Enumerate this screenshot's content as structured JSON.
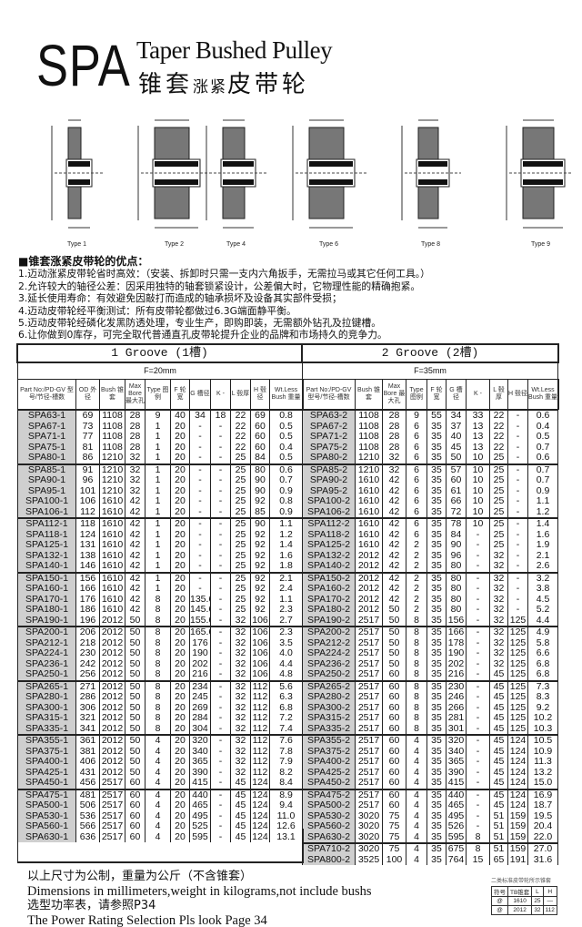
{
  "header": {
    "series": "SPA",
    "title_en": "Taper Bushed Pulley",
    "title_cn_a": "锥套",
    "title_cn_b": "涨紧",
    "title_cn_c": "皮带轮"
  },
  "diagrams": [
    "Type 1",
    "Type 2",
    "Type 4",
    "Type 6",
    "Type 8",
    "Type 9"
  ],
  "advantages": {
    "heading": "■锥套涨紧皮带轮的优点：",
    "items": [
      "1.迈动涨紧皮带轮省时高效：（安装、拆卸时只需一支内六角扳手，无需拉马或其它任何工具。）",
      "2.允许较大的轴径公差：因采用独特的轴套锁紧设计，公差偏大时，它物理性能的精确抱紧。",
      "3.延长使用寿命：有效避免因敲打而造成的轴承损坏及设备其实部件受损；",
      "4.迈动皮带轮经平衡测试：所有皮带轮都做过6.3G端面静平衡。",
      "5.迈动皮带轮经磷化发黑防透处理，专业生产，即购即装，无需额外钻孔及拉键槽。",
      "6.让你做到0库存，可完全取代普通直孔皮带轮提升企业的品牌和市场持久的竞争力。"
    ]
  },
  "groove1": {
    "title": "1 Groove (1槽)",
    "face": "F=20mm",
    "columns": [
      "Part No:/PD-GV 型号/节径-槽数",
      "OD 外径",
      "Bush 锥套",
      "Max Bore 最大孔",
      "Type 图例",
      "F 轮宽",
      "G 槽径",
      "K -",
      "L 毂厚",
      "H 毂径",
      "Wt.Less Bush 重量"
    ],
    "rows": [
      [
        "SPA63-1",
        "69",
        "1108",
        "28",
        "9",
        "40",
        "34",
        "18",
        "22",
        "69",
        "0.8"
      ],
      [
        "SPA67-1",
        "73",
        "1108",
        "28",
        "1",
        "20",
        "-",
        "-",
        "22",
        "60",
        "0.5"
      ],
      [
        "SPA71-1",
        "77",
        "1108",
        "28",
        "1",
        "20",
        "-",
        "-",
        "22",
        "60",
        "0.5"
      ],
      [
        "SPA75-1",
        "81",
        "1108",
        "28",
        "1",
        "20",
        "-",
        "-",
        "22",
        "60",
        "0.4"
      ],
      [
        "SPA80-1",
        "86",
        "1210",
        "32",
        "1",
        "20",
        "-",
        "-",
        "25",
        "84",
        "0.5"
      ],
      [
        "SPA85-1",
        "91",
        "1210",
        "32",
        "1",
        "20",
        "-",
        "-",
        "25",
        "80",
        "0.6"
      ],
      [
        "SPA90-1",
        "96",
        "1210",
        "32",
        "1",
        "20",
        "-",
        "-",
        "25",
        "90",
        "0.7"
      ],
      [
        "SPA95-1",
        "101",
        "1210",
        "32",
        "1",
        "20",
        "-",
        "-",
        "25",
        "90",
        "0.9"
      ],
      [
        "SPA100-1",
        "106",
        "1610",
        "42",
        "1",
        "20",
        "-",
        "-",
        "25",
        "92",
        "0.8"
      ],
      [
        "SPA106-1",
        "112",
        "1610",
        "42",
        "1",
        "20",
        "-",
        "-",
        "25",
        "85",
        "0.9"
      ],
      [
        "SPA112-1",
        "118",
        "1610",
        "42",
        "1",
        "20",
        "-",
        "-",
        "25",
        "90",
        "1.1"
      ],
      [
        "SPA118-1",
        "124",
        "1610",
        "42",
        "1",
        "20",
        "-",
        "-",
        "25",
        "92",
        "1.2"
      ],
      [
        "SPA125-1",
        "131",
        "1610",
        "42",
        "1",
        "20",
        "-",
        "-",
        "25",
        "92",
        "1.4"
      ],
      [
        "SPA132-1",
        "138",
        "1610",
        "42",
        "1",
        "20",
        "-",
        "-",
        "25",
        "92",
        "1.6"
      ],
      [
        "SPA140-1",
        "146",
        "1610",
        "42",
        "1",
        "20",
        "-",
        "-",
        "25",
        "92",
        "1.8"
      ],
      [
        "SPA150-1",
        "156",
        "1610",
        "42",
        "1",
        "20",
        "-",
        "-",
        "25",
        "92",
        "2.1"
      ],
      [
        "SPA160-1",
        "166",
        "1610",
        "42",
        "1",
        "20",
        "-",
        "-",
        "25",
        "92",
        "2.4"
      ],
      [
        "SPA170-1",
        "176",
        "1610",
        "42",
        "8",
        "20",
        "135.6",
        "-",
        "25",
        "92",
        "1.1"
      ],
      [
        "SPA180-1",
        "186",
        "1610",
        "42",
        "8",
        "20",
        "145.6",
        "-",
        "25",
        "92",
        "2.3"
      ],
      [
        "SPA190-1",
        "196",
        "2012",
        "50",
        "8",
        "20",
        "155.6",
        "-",
        "32",
        "106",
        "2.7"
      ],
      [
        "SPA200-1",
        "206",
        "2012",
        "50",
        "8",
        "20",
        "165.6",
        "-",
        "32",
        "106",
        "2.3"
      ],
      [
        "SPA212-1",
        "218",
        "2012",
        "50",
        "8",
        "20",
        "176",
        "-",
        "32",
        "106",
        "3.5"
      ],
      [
        "SPA224-1",
        "230",
        "2012",
        "50",
        "8",
        "20",
        "190",
        "-",
        "32",
        "106",
        "4.0"
      ],
      [
        "SPA236-1",
        "242",
        "2012",
        "50",
        "8",
        "20",
        "202",
        "-",
        "32",
        "106",
        "4.4"
      ],
      [
        "SPA250-1",
        "256",
        "2012",
        "50",
        "8",
        "20",
        "216",
        "-",
        "32",
        "106",
        "4.8"
      ],
      [
        "SPA265-1",
        "271",
        "2012",
        "50",
        "8",
        "20",
        "234",
        "-",
        "32",
        "112",
        "5.6"
      ],
      [
        "SPA280-1",
        "286",
        "2012",
        "50",
        "8",
        "20",
        "245",
        "-",
        "32",
        "112",
        "6.3"
      ],
      [
        "SPA300-1",
        "306",
        "2012",
        "50",
        "8",
        "20",
        "269",
        "-",
        "32",
        "112",
        "6.8"
      ],
      [
        "SPA315-1",
        "321",
        "2012",
        "50",
        "8",
        "20",
        "284",
        "-",
        "32",
        "112",
        "7.2"
      ],
      [
        "SPA335-1",
        "341",
        "2012",
        "50",
        "8",
        "20",
        "304",
        "-",
        "32",
        "112",
        "7.4"
      ],
      [
        "SPA355-1",
        "361",
        "2012",
        "50",
        "4",
        "20",
        "320",
        "-",
        "32",
        "112",
        "7.6"
      ],
      [
        "SPA375-1",
        "381",
        "2012",
        "50",
        "4",
        "20",
        "340",
        "-",
        "32",
        "112",
        "7.8"
      ],
      [
        "SPA400-1",
        "406",
        "2012",
        "50",
        "4",
        "20",
        "365",
        "-",
        "32",
        "112",
        "7.9"
      ],
      [
        "SPA425-1",
        "431",
        "2012",
        "50",
        "4",
        "20",
        "390",
        "-",
        "32",
        "112",
        "8.2"
      ],
      [
        "SPA450-1",
        "456",
        "2517",
        "60",
        "4",
        "20",
        "415",
        "-",
        "45",
        "124",
        "8.4"
      ],
      [
        "SPA475-1",
        "481",
        "2517",
        "60",
        "4",
        "20",
        "440",
        "-",
        "45",
        "124",
        "8.9"
      ],
      [
        "SPA500-1",
        "506",
        "2517",
        "60",
        "4",
        "20",
        "465",
        "-",
        "45",
        "124",
        "9.4"
      ],
      [
        "SPA530-1",
        "536",
        "2517",
        "60",
        "4",
        "20",
        "495",
        "-",
        "45",
        "124",
        "11.0"
      ],
      [
        "SPA560-1",
        "566",
        "2517",
        "60",
        "4",
        "20",
        "525",
        "-",
        "45",
        "124",
        "12.6"
      ],
      [
        "SPA630-1",
        "636",
        "2517",
        "60",
        "4",
        "20",
        "595",
        "-",
        "45",
        "124",
        "13.1"
      ]
    ]
  },
  "groove2": {
    "title": "2 Groove (2槽)",
    "face": "F=35mm",
    "columns": [
      "Part No:/PD-GV 型号/节径-槽数",
      "Bush 锥套",
      "Max Bore 最大孔",
      "Type 图例",
      "F 轮宽",
      "G 槽径",
      "K -",
      "L 毂厚",
      "H 毂径",
      "Wt.Less Bush 重量"
    ],
    "rows": [
      [
        "SPA63-2",
        "1108",
        "28",
        "9",
        "55",
        "34",
        "33",
        "22",
        "-",
        "0.6"
      ],
      [
        "SPA67-2",
        "1108",
        "28",
        "6",
        "35",
        "37",
        "13",
        "22",
        "-",
        "0.4"
      ],
      [
        "SPA71-2",
        "1108",
        "28",
        "6",
        "35",
        "40",
        "13",
        "22",
        "-",
        "0.5"
      ],
      [
        "SPA75-2",
        "1108",
        "28",
        "6",
        "35",
        "45",
        "13",
        "22",
        "-",
        "0.7"
      ],
      [
        "SPA80-2",
        "1210",
        "32",
        "6",
        "35",
        "50",
        "10",
        "25",
        "-",
        "0.6"
      ],
      [
        "SPA85-2",
        "1210",
        "32",
        "6",
        "35",
        "57",
        "10",
        "25",
        "-",
        "0.7"
      ],
      [
        "SPA90-2",
        "1610",
        "42",
        "6",
        "35",
        "60",
        "10",
        "25",
        "-",
        "0.7"
      ],
      [
        "SPA95-2",
        "1610",
        "42",
        "6",
        "35",
        "61",
        "10",
        "25",
        "-",
        "0.9"
      ],
      [
        "SPA100-2",
        "1610",
        "42",
        "6",
        "35",
        "66",
        "10",
        "25",
        "-",
        "1.1"
      ],
      [
        "SPA106-2",
        "1610",
        "42",
        "6",
        "35",
        "72",
        "10",
        "25",
        "-",
        "1.2"
      ],
      [
        "SPA112-2",
        "1610",
        "42",
        "6",
        "35",
        "78",
        "10",
        "25",
        "-",
        "1.4"
      ],
      [
        "SPA118-2",
        "1610",
        "42",
        "6",
        "35",
        "84",
        "-",
        "25",
        "-",
        "1.6"
      ],
      [
        "SPA125-2",
        "1610",
        "42",
        "2",
        "35",
        "90",
        "-",
        "25",
        "-",
        "1.9"
      ],
      [
        "SPA132-2",
        "2012",
        "42",
        "2",
        "35",
        "96",
        "-",
        "32",
        "-",
        "2.1"
      ],
      [
        "SPA140-2",
        "2012",
        "42",
        "2",
        "35",
        "80",
        "-",
        "32",
        "-",
        "2.6"
      ],
      [
        "SPA150-2",
        "2012",
        "42",
        "2",
        "35",
        "80",
        "-",
        "32",
        "-",
        "3.2"
      ],
      [
        "SPA160-2",
        "2012",
        "42",
        "2",
        "35",
        "80",
        "-",
        "32",
        "-",
        "3.8"
      ],
      [
        "SPA170-2",
        "2012",
        "42",
        "2",
        "35",
        "80",
        "-",
        "32",
        "-",
        "4.5"
      ],
      [
        "SPA180-2",
        "2012",
        "50",
        "2",
        "35",
        "80",
        "-",
        "32",
        "-",
        "5.2"
      ],
      [
        "SPA190-2",
        "2517",
        "50",
        "8",
        "35",
        "156",
        "-",
        "32",
        "125",
        "4.4"
      ],
      [
        "SPA200-2",
        "2517",
        "50",
        "8",
        "35",
        "166",
        "-",
        "32",
        "125",
        "4.9"
      ],
      [
        "SPA212-2",
        "2517",
        "50",
        "8",
        "35",
        "178",
        "-",
        "32",
        "125",
        "5.8"
      ],
      [
        "SPA224-2",
        "2517",
        "50",
        "8",
        "35",
        "190",
        "-",
        "32",
        "125",
        "6.6"
      ],
      [
        "SPA236-2",
        "2517",
        "50",
        "8",
        "35",
        "202",
        "-",
        "32",
        "125",
        "6.8"
      ],
      [
        "SPA250-2",
        "2517",
        "60",
        "8",
        "35",
        "216",
        "-",
        "45",
        "125",
        "6.8"
      ],
      [
        "SPA265-2",
        "2517",
        "60",
        "8",
        "35",
        "230",
        "-",
        "45",
        "125",
        "7.3"
      ],
      [
        "SPA280-2",
        "2517",
        "60",
        "8",
        "35",
        "246",
        "-",
        "45",
        "125",
        "8.3"
      ],
      [
        "SPA300-2",
        "2517",
        "60",
        "8",
        "35",
        "266",
        "-",
        "45",
        "125",
        "9.2"
      ],
      [
        "SPA315-2",
        "2517",
        "60",
        "8",
        "35",
        "281",
        "-",
        "45",
        "125",
        "10.2"
      ],
      [
        "SPA335-2",
        "2517",
        "60",
        "8",
        "35",
        "301",
        "-",
        "45",
        "125",
        "10.3"
      ],
      [
        "SPA355-2",
        "2517",
        "60",
        "4",
        "35",
        "320",
        "-",
        "45",
        "124",
        "10.5"
      ],
      [
        "SPA375-2",
        "2517",
        "60",
        "4",
        "35",
        "340",
        "-",
        "45",
        "124",
        "10.9"
      ],
      [
        "SPA400-2",
        "2517",
        "60",
        "4",
        "35",
        "365",
        "-",
        "45",
        "124",
        "11.3"
      ],
      [
        "SPA425-2",
        "2517",
        "60",
        "4",
        "35",
        "390",
        "-",
        "45",
        "124",
        "13.2"
      ],
      [
        "SPA450-2",
        "2517",
        "60",
        "4",
        "35",
        "415",
        "-",
        "45",
        "124",
        "15.0"
      ],
      [
        "SPA475-2",
        "2517",
        "60",
        "4",
        "35",
        "440",
        "-",
        "45",
        "124",
        "16.9"
      ],
      [
        "SPA500-2",
        "2517",
        "60",
        "4",
        "35",
        "465",
        "-",
        "45",
        "124",
        "18.7"
      ],
      [
        "SPA530-2",
        "3020",
        "75",
        "4",
        "35",
        "495",
        "-",
        "51",
        "159",
        "19.5"
      ],
      [
        "SPA560-2",
        "3020",
        "75",
        "4",
        "35",
        "526",
        "-",
        "51",
        "159",
        "20.4"
      ],
      [
        "SPA630-2",
        "3020",
        "75",
        "4",
        "35",
        "595",
        "8",
        "51",
        "159",
        "22.0"
      ],
      [
        "SPA710-2",
        "3020",
        "75",
        "4",
        "35",
        "675",
        "8",
        "51",
        "159",
        "27.0"
      ],
      [
        "SPA800-2",
        "3525",
        "100",
        "4",
        "35",
        "764",
        "15",
        "65",
        "191",
        "31.6"
      ]
    ]
  },
  "footer": {
    "line1": "以上尺寸为公制，重量为公斤（不含锥套）",
    "line2": "Dimensions in millimeters,weight in kilograms,not include bushs",
    "line3": "选型功率表，请参照P34",
    "line4": "The Power Rating Selection Pls look Page 34"
  },
  "mini_table": {
    "caption": "二类标准皮带轮所示锥套",
    "head": [
      "符号",
      "TB锥套",
      "L",
      "H"
    ],
    "rows": [
      [
        "@",
        "1610",
        "25",
        "—"
      ],
      [
        "@",
        "2012",
        "32",
        "112"
      ]
    ]
  }
}
